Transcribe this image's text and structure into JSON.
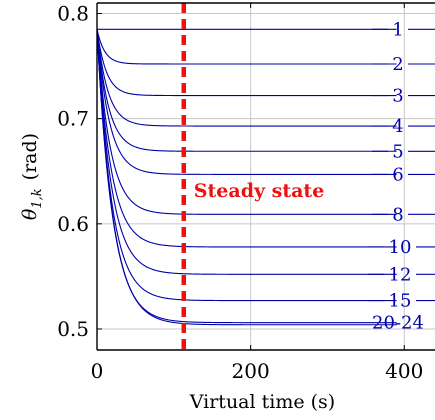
{
  "chart_data": {
    "type": "line",
    "title": "",
    "xlabel": "Virtual time (s)",
    "ylabel_main": "θ",
    "ylabel_sub": "1,k",
    "ylabel_unit": "(rad)",
    "xlim": [
      0,
      440
    ],
    "ylim": [
      0.48,
      0.81
    ],
    "xticks": [
      0,
      200,
      400
    ],
    "yticks": [
      0.5,
      0.6,
      0.7,
      0.8
    ],
    "xtick_labels": [
      "0",
      "200",
      "400"
    ],
    "ytick_labels": [
      "0.5",
      "0.6",
      "0.7",
      "0.8"
    ],
    "grid": true,
    "initial_value": 0.785,
    "x_end": 390,
    "series": [
      {
        "name": "1",
        "final": 0.785,
        "tau": 4
      },
      {
        "name": "2",
        "final": 0.752,
        "tau": 10
      },
      {
        "name": "3",
        "final": 0.722,
        "tau": 12
      },
      {
        "name": "4",
        "final": 0.693,
        "tau": 14
      },
      {
        "name": "5",
        "final": 0.669,
        "tau": 15
      },
      {
        "name": "6",
        "final": 0.647,
        "tau": 16
      },
      {
        "name": "8",
        "final": 0.609,
        "tau": 17
      },
      {
        "name": "10",
        "final": 0.578,
        "tau": 18
      },
      {
        "name": "12",
        "final": 0.552,
        "tau": 18.5
      },
      {
        "name": "15",
        "final": 0.527,
        "tau": 19
      },
      {
        "name": "20-24",
        "final": 0.506,
        "tau": 20
      },
      {
        "name": "",
        "final": 0.504,
        "tau": 20.5
      }
    ],
    "steady_state": {
      "x": 113,
      "label": "Steady state",
      "label_y": 0.632
    },
    "colors": {
      "curves": "#0000aa",
      "steady": "#ee1111",
      "grid": "#c8c8c8"
    }
  }
}
